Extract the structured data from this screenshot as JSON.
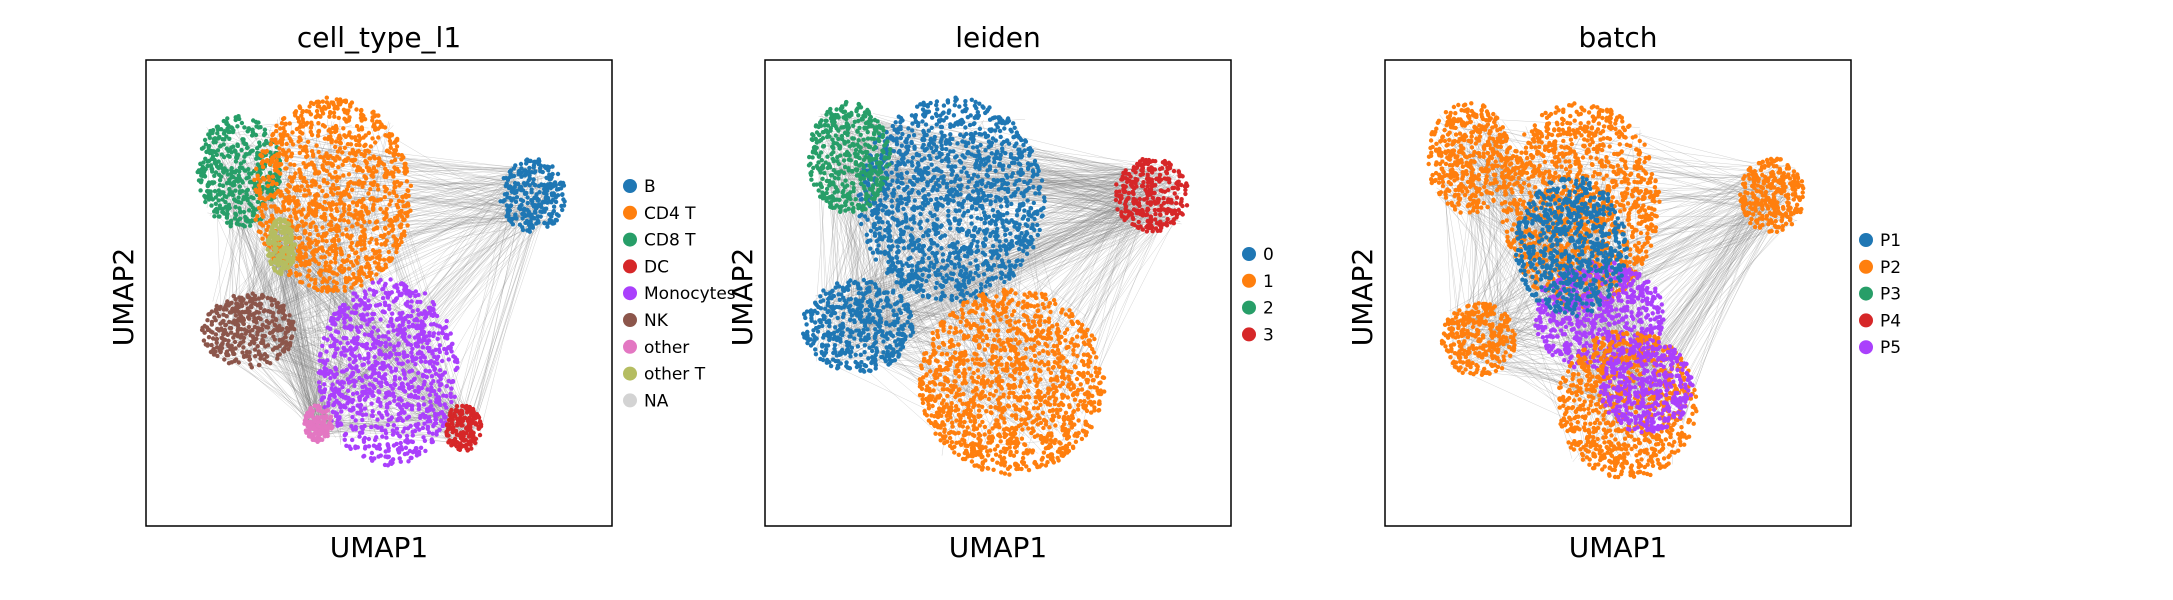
{
  "chart_data": [
    {
      "type": "scatter",
      "title": "cell_type_l1",
      "xlabel": "UMAP1",
      "ylabel": "UMAP2",
      "grid": false,
      "ticks": false,
      "edges": true,
      "legend_position": "right",
      "legend": [
        {
          "label": "B",
          "color": "#1f77b4"
        },
        {
          "label": "CD4 T",
          "color": "#ff7f0e"
        },
        {
          "label": "CD8 T",
          "color": "#279e68"
        },
        {
          "label": "DC",
          "color": "#d62728"
        },
        {
          "label": "Monocytes",
          "color": "#aa40fc"
        },
        {
          "label": "NK",
          "color": "#8c564b"
        },
        {
          "label": "other",
          "color": "#e377c2"
        },
        {
          "label": "other T",
          "color": "#b5bd61"
        },
        {
          "label": "NA",
          "color": "#d3d3d3"
        }
      ],
      "clusters": [
        {
          "label": "CD8 T",
          "cx": 0.2,
          "cy": 0.76,
          "rx": 0.09,
          "ry": 0.12
        },
        {
          "label": "CD4 T",
          "cx": 0.4,
          "cy": 0.71,
          "rx": 0.17,
          "ry": 0.21
        },
        {
          "label": "B",
          "cx": 0.83,
          "cy": 0.71,
          "rx": 0.07,
          "ry": 0.08
        },
        {
          "label": "NK",
          "cx": 0.22,
          "cy": 0.42,
          "rx": 0.1,
          "ry": 0.08
        },
        {
          "label": "Monocytes",
          "cx": 0.52,
          "cy": 0.33,
          "rx": 0.15,
          "ry": 0.2
        },
        {
          "label": "DC",
          "cx": 0.68,
          "cy": 0.21,
          "rx": 0.04,
          "ry": 0.05
        },
        {
          "label": "other",
          "cx": 0.37,
          "cy": 0.22,
          "rx": 0.03,
          "ry": 0.04
        },
        {
          "label": "other T",
          "cx": 0.29,
          "cy": 0.6,
          "rx": 0.03,
          "ry": 0.06
        }
      ]
    },
    {
      "type": "scatter",
      "title": "leiden",
      "xlabel": "UMAP1",
      "ylabel": "UMAP2",
      "grid": false,
      "ticks": false,
      "edges": true,
      "legend_position": "right",
      "legend": [
        {
          "label": "0",
          "color": "#1f77b4"
        },
        {
          "label": "1",
          "color": "#ff7f0e"
        },
        {
          "label": "2",
          "color": "#279e68"
        },
        {
          "label": "3",
          "color": "#d62728"
        }
      ],
      "clusters": [
        {
          "label": "0",
          "cx": 0.4,
          "cy": 0.7,
          "rx": 0.2,
          "ry": 0.22
        },
        {
          "label": "0",
          "cx": 0.2,
          "cy": 0.43,
          "rx": 0.12,
          "ry": 0.1
        },
        {
          "label": "1",
          "cx": 0.53,
          "cy": 0.31,
          "rx": 0.2,
          "ry": 0.2
        },
        {
          "label": "2",
          "cx": 0.18,
          "cy": 0.79,
          "rx": 0.09,
          "ry": 0.12
        },
        {
          "label": "3",
          "cx": 0.83,
          "cy": 0.71,
          "rx": 0.08,
          "ry": 0.08
        }
      ]
    },
    {
      "type": "scatter",
      "title": "batch",
      "xlabel": "UMAP1",
      "ylabel": "UMAP2",
      "grid": false,
      "ticks": false,
      "edges": true,
      "legend_position": "right",
      "legend": [
        {
          "label": "P1",
          "color": "#1f77b4"
        },
        {
          "label": "P2",
          "color": "#ff7f0e"
        },
        {
          "label": "P3",
          "color": "#279e68"
        },
        {
          "label": "P4",
          "color": "#d62728"
        },
        {
          "label": "P5",
          "color": "#aa40fc"
        }
      ],
      "clusters": [
        {
          "label": "P2",
          "cx": 0.18,
          "cy": 0.79,
          "rx": 0.09,
          "ry": 0.12
        },
        {
          "label": "P2",
          "cx": 0.42,
          "cy": 0.69,
          "rx": 0.17,
          "ry": 0.22
        },
        {
          "label": "P2",
          "cx": 0.83,
          "cy": 0.71,
          "rx": 0.07,
          "ry": 0.08
        },
        {
          "label": "P2",
          "cx": 0.2,
          "cy": 0.4,
          "rx": 0.08,
          "ry": 0.08
        },
        {
          "label": "P5",
          "cx": 0.46,
          "cy": 0.45,
          "rx": 0.14,
          "ry": 0.12
        },
        {
          "label": "P2",
          "cx": 0.52,
          "cy": 0.26,
          "rx": 0.15,
          "ry": 0.16
        },
        {
          "label": "P5",
          "cx": 0.56,
          "cy": 0.3,
          "rx": 0.1,
          "ry": 0.1
        },
        {
          "label": "P1",
          "cx": 0.4,
          "cy": 0.6,
          "rx": 0.12,
          "ry": 0.15
        }
      ]
    }
  ]
}
